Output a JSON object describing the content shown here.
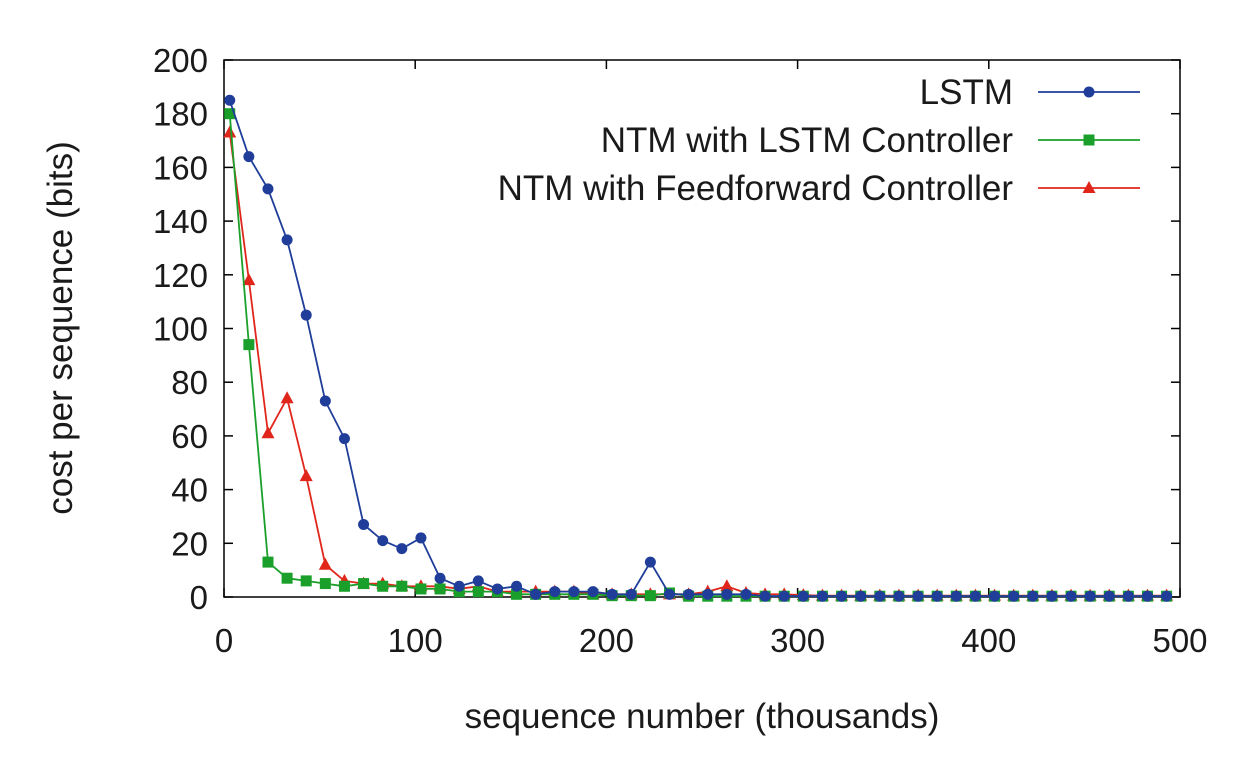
{
  "chart_data": {
    "type": "line",
    "title": "",
    "xlabel": "sequence number (thousands)",
    "ylabel": "cost per sequence (bits)",
    "xlim": [
      0,
      500
    ],
    "ylim": [
      0,
      200
    ],
    "xticks": [
      0,
      100,
      200,
      300,
      400,
      500
    ],
    "yticks": [
      0,
      20,
      40,
      60,
      80,
      100,
      120,
      140,
      160,
      180,
      200
    ],
    "grid": false,
    "legend_position": "top-right",
    "x": [
      3,
      13,
      23,
      33,
      43,
      53,
      63,
      73,
      83,
      93,
      103,
      113,
      123,
      133,
      143,
      153,
      163,
      173,
      183,
      193,
      203,
      213,
      223,
      233,
      243,
      253,
      263,
      273,
      283,
      293,
      303,
      313,
      323,
      333,
      343,
      353,
      363,
      373,
      383,
      393,
      403,
      413,
      423,
      433,
      443,
      453,
      463,
      473,
      483,
      493
    ],
    "series": [
      {
        "name": "LSTM",
        "color": "#1f3d99",
        "marker": "circle",
        "values": [
          185,
          164,
          152,
          133,
          105,
          73,
          59,
          27,
          21,
          18,
          22,
          7,
          4,
          6,
          3,
          4,
          1,
          2,
          2,
          2,
          1,
          1,
          13,
          1,
          1,
          1,
          1,
          1,
          0.3,
          0.3,
          0.3,
          0.3,
          0.3,
          0.3,
          0.3,
          0.3,
          0.3,
          0.3,
          0.3,
          0.3,
          0.3,
          0.3,
          0.3,
          0.3,
          0.3,
          0.3,
          0.3,
          0.3,
          0.3,
          0.3
        ]
      },
      {
        "name": "NTM with LSTM Controller",
        "color": "#1aa02a",
        "marker": "square",
        "values": [
          180,
          94,
          13,
          7,
          6,
          5,
          4,
          5,
          4,
          4,
          3,
          3,
          2,
          2,
          2,
          1,
          1,
          1,
          1,
          1,
          0.5,
          0.5,
          0.5,
          1.5,
          0.3,
          0.3,
          0.3,
          0.3,
          0.3,
          0.3,
          0.3,
          0.3,
          0.3,
          0.3,
          0.3,
          0.3,
          0.3,
          0.3,
          0.3,
          0.3,
          0.3,
          0.3,
          0.3,
          0.3,
          0.3,
          0.3,
          0.3,
          0.3,
          0.3,
          0.3
        ]
      },
      {
        "name": "NTM with Feedforward Controller",
        "color": "#e0261b",
        "marker": "triangle",
        "values": [
          173,
          118,
          61,
          74,
          45,
          12,
          6,
          5,
          5,
          4,
          4,
          4,
          3,
          4,
          2,
          2,
          2,
          2,
          2,
          1,
          1,
          1,
          1,
          1,
          1,
          2,
          4,
          1.5,
          1,
          1,
          0.7,
          0.5,
          0.5,
          0.5,
          0.5,
          0.5,
          0.5,
          0.5,
          0.5,
          0.5,
          0.5,
          0.5,
          0.5,
          0.5,
          0.5,
          0.5,
          0.5,
          0.5,
          0.5,
          0.5
        ]
      }
    ]
  }
}
